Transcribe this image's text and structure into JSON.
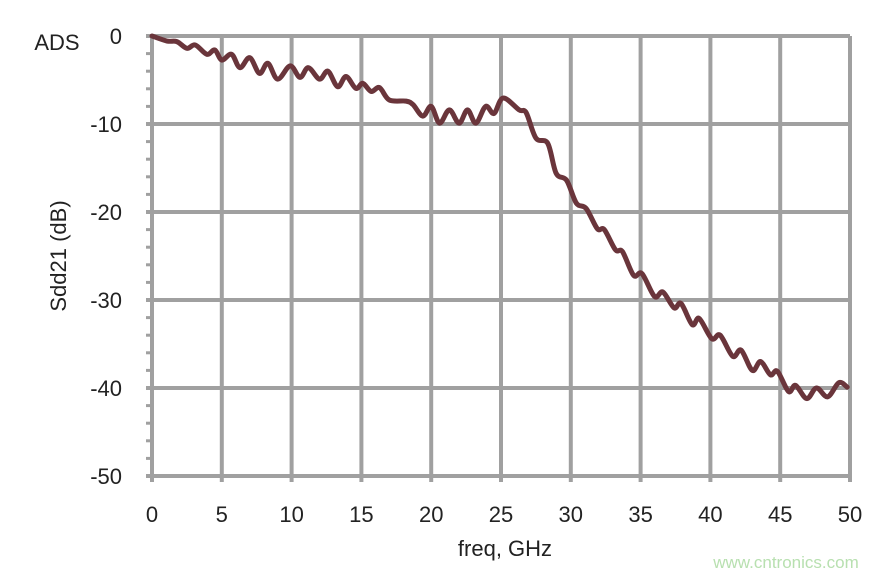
{
  "chart_data": {
    "type": "line",
    "corner_label": "ADS",
    "xlabel": "freq, GHz",
    "ylabel": "Sdd21 (dB)",
    "xlim": [
      0,
      50
    ],
    "ylim": [
      -50,
      0
    ],
    "x_ticks": [
      0,
      5,
      10,
      15,
      20,
      25,
      30,
      35,
      40,
      45,
      50
    ],
    "y_ticks": [
      0,
      -10,
      -20,
      -30,
      -40,
      -50
    ],
    "x_tick_labels": [
      "0",
      "5",
      "10",
      "15",
      "20",
      "25",
      "30",
      "35",
      "40",
      "45",
      "50"
    ],
    "y_tick_labels": [
      "0",
      "-10",
      "-20",
      "-30",
      "-40",
      "-50"
    ],
    "grid": true,
    "colors": {
      "line": "#6a353b",
      "grid": "#a0a0a0",
      "xlabel": "#6a353b",
      "watermark": "#b8e0b0"
    },
    "series": [
      {
        "x": [
          0,
          1.07,
          1.78,
          2.5,
          3.1,
          3.93,
          4.5,
          5.0,
          5.7,
          6.3,
          7.0,
          7.7,
          8.3,
          9.0,
          9.9,
          10.6,
          11.2,
          12.0,
          12.6,
          13.3,
          13.9,
          14.6,
          15.1,
          15.7,
          16.3,
          17.0,
          18.2,
          18.7,
          19.4,
          20.0,
          20.6,
          21.3,
          22.0,
          22.6,
          23.2,
          23.9,
          24.5,
          25.15,
          26.3,
          26.8,
          27.5,
          28.35,
          28.95,
          29.7,
          30.4,
          31.1,
          31.9,
          32.4,
          33.2,
          33.7,
          34.5,
          35.1,
          36.0,
          36.6,
          37.4,
          37.9,
          38.7,
          39.2,
          40.1,
          40.7,
          41.6,
          42.2,
          43.0,
          43.6,
          44.3,
          44.8,
          45.6,
          46.1,
          46.9,
          47.6,
          48.4,
          49.2,
          49.8
        ],
        "y": [
          0,
          -0.57,
          -0.64,
          -1.4,
          -1.02,
          -2.08,
          -1.59,
          -2.73,
          -2.08,
          -3.6,
          -2.46,
          -4.25,
          -3.1,
          -4.9,
          -3.4,
          -4.7,
          -3.6,
          -4.9,
          -4.0,
          -5.76,
          -4.6,
          -5.95,
          -5.38,
          -6.3,
          -5.87,
          -7.27,
          -7.4,
          -7.8,
          -9.1,
          -8.0,
          -9.9,
          -8.4,
          -9.9,
          -8.4,
          -9.9,
          -8.0,
          -8.8,
          -7.05,
          -8.4,
          -8.7,
          -11.6,
          -12.2,
          -15.6,
          -16.4,
          -19.0,
          -19.6,
          -21.9,
          -22.0,
          -24.3,
          -24.5,
          -27.2,
          -27.0,
          -29.6,
          -29.1,
          -30.9,
          -30.4,
          -32.8,
          -32.1,
          -34.4,
          -34.0,
          -36.4,
          -35.7,
          -38.0,
          -37.0,
          -38.5,
          -38.1,
          -40.4,
          -39.7,
          -41.2,
          -40.0,
          -41.0,
          -39.4,
          -39.9
        ]
      }
    ]
  },
  "watermark": "www.cntronics.com"
}
